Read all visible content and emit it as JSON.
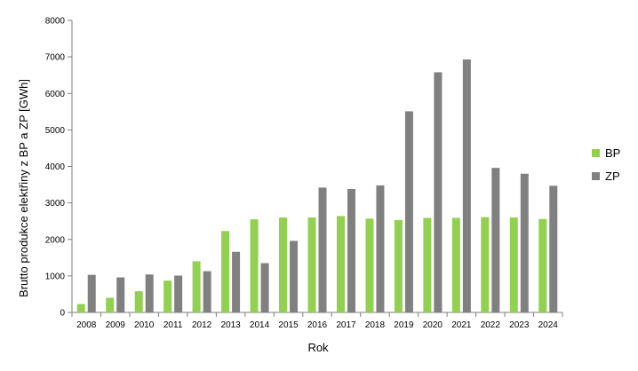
{
  "chart_data": {
    "type": "bar",
    "title": "",
    "xlabel": "Rok",
    "ylabel": "Brutto produkce elektřiny z BP a ZP [GWh]",
    "ylim": [
      0,
      8000
    ],
    "yticks": [
      0,
      1000,
      2000,
      3000,
      4000,
      5000,
      6000,
      7000,
      8000
    ],
    "grid": false,
    "legend_position": "right",
    "categories": [
      "2008",
      "2009",
      "2010",
      "2011",
      "2012",
      "2013",
      "2014",
      "2015",
      "2016",
      "2017",
      "2018",
      "2019",
      "2020",
      "2021",
      "2022",
      "2023",
      "2024"
    ],
    "series": [
      {
        "name": "BP",
        "color": "#92d050",
        "values": [
          230,
          400,
          580,
          870,
          1400,
          2230,
          2550,
          2600,
          2600,
          2640,
          2570,
          2530,
          2590,
          2590,
          2610,
          2600,
          2560
        ]
      },
      {
        "name": "ZP",
        "color": "#808080",
        "values": [
          1030,
          960,
          1040,
          1010,
          1130,
          1660,
          1350,
          1960,
          3420,
          3380,
          3480,
          5510,
          6580,
          6930,
          3960,
          3800,
          3470
        ]
      }
    ]
  }
}
